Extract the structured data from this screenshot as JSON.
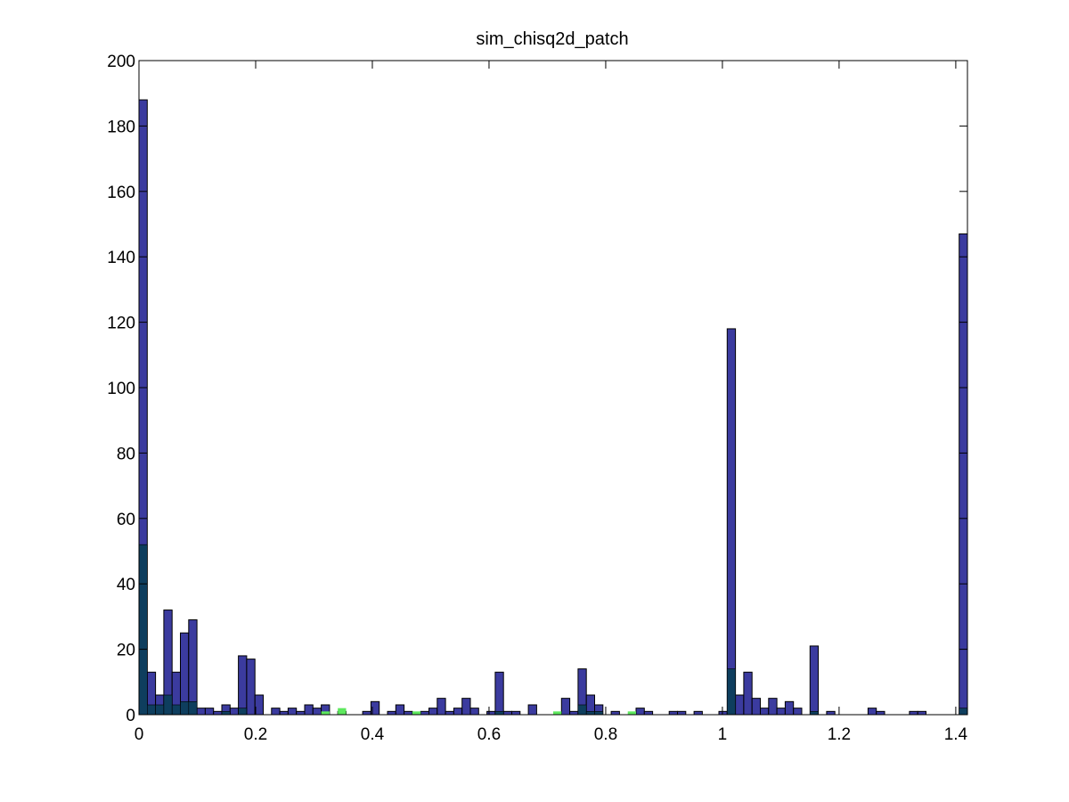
{
  "chart_data": {
    "type": "bar",
    "title": "sim_chisq2d_patch",
    "xlabel": "",
    "ylabel": "",
    "xlim": [
      0,
      1.42
    ],
    "ylim": [
      0,
      200
    ],
    "x_ticks": [
      0,
      0.2,
      0.4,
      0.6,
      0.8,
      1,
      1.2,
      1.4
    ],
    "x_tick_labels": [
      "0",
      "0.2",
      "0.4",
      "0.6",
      "0.8",
      "1",
      "1.2",
      "1.4"
    ],
    "y_ticks": [
      0,
      20,
      40,
      60,
      80,
      100,
      120,
      140,
      160,
      180,
      200
    ],
    "y_tick_labels": [
      "0",
      "20",
      "40",
      "60",
      "80",
      "100",
      "120",
      "140",
      "160",
      "180",
      "200"
    ],
    "bin_width": 0.0142,
    "grid": false,
    "colors": {
      "total": "#3b3b9f",
      "subset_dark": "#0e3e5e",
      "subset_light": "#5ee85e",
      "edge": "#000000"
    },
    "series": [
      {
        "values": [
          [
            0.0,
            188
          ],
          [
            0.0142,
            13
          ],
          [
            0.0284,
            6
          ],
          [
            0.0426,
            32
          ],
          [
            0.0568,
            13
          ],
          [
            0.071,
            25
          ],
          [
            0.0852,
            29
          ],
          [
            0.0994,
            2
          ],
          [
            0.1136,
            2
          ],
          [
            0.1278,
            1
          ],
          [
            0.142,
            3
          ],
          [
            0.1562,
            2
          ],
          [
            0.1704,
            18
          ],
          [
            0.1846,
            17
          ],
          [
            0.1988,
            6
          ],
          [
            0.2272,
            2
          ],
          [
            0.2414,
            1
          ],
          [
            0.2556,
            2
          ],
          [
            0.2698,
            1
          ],
          [
            0.284,
            3
          ],
          [
            0.2982,
            2
          ],
          [
            0.3124,
            3
          ],
          [
            0.3408,
            1
          ],
          [
            0.3834,
            1
          ],
          [
            0.3976,
            4
          ],
          [
            0.426,
            1
          ],
          [
            0.4402,
            3
          ],
          [
            0.4544,
            1
          ],
          [
            0.4828,
            1
          ],
          [
            0.497,
            2
          ],
          [
            0.5112,
            5
          ],
          [
            0.5254,
            1
          ],
          [
            0.5396,
            2
          ],
          [
            0.5538,
            5
          ],
          [
            0.568,
            2
          ],
          [
            0.5964,
            1
          ],
          [
            0.6106,
            13
          ],
          [
            0.6248,
            1
          ],
          [
            0.639,
            1
          ],
          [
            0.6674,
            3
          ],
          [
            0.7242,
            5
          ],
          [
            0.7384,
            1
          ],
          [
            0.7526,
            14
          ],
          [
            0.7668,
            6
          ],
          [
            0.781,
            3
          ],
          [
            0.8094,
            1
          ],
          [
            0.852,
            2
          ],
          [
            0.8662,
            1
          ],
          [
            0.9088,
            1
          ],
          [
            0.923,
            1
          ],
          [
            0.9514,
            1
          ],
          [
            0.994,
            1
          ],
          [
            1.0082,
            118
          ],
          [
            1.0224,
            6
          ],
          [
            1.0366,
            13
          ],
          [
            1.0508,
            5
          ],
          [
            1.065,
            2
          ],
          [
            1.0792,
            5
          ],
          [
            1.0934,
            2
          ],
          [
            1.1076,
            4
          ],
          [
            1.1218,
            2
          ],
          [
            1.1502,
            21
          ],
          [
            1.1786,
            1
          ],
          [
            1.2496,
            2
          ],
          [
            1.2638,
            1
          ],
          [
            1.3206,
            1
          ],
          [
            1.3348,
            1
          ],
          [
            1.4058,
            147
          ]
        ]
      },
      {
        "values": [
          [
            0.0,
            52
          ],
          [
            0.0142,
            3
          ],
          [
            0.0284,
            3
          ],
          [
            0.0426,
            6
          ],
          [
            0.0568,
            3
          ],
          [
            0.071,
            4
          ],
          [
            0.0852,
            4
          ],
          [
            0.1704,
            2
          ],
          [
            0.142,
            1
          ],
          [
            0.6106,
            1
          ],
          [
            0.7526,
            3
          ],
          [
            0.7668,
            1
          ],
          [
            0.781,
            1
          ],
          [
            1.0082,
            14
          ],
          [
            1.1502,
            1
          ],
          [
            1.4058,
            2
          ]
        ]
      },
      {
        "values": [
          [
            0.3408,
            2
          ],
          [
            0.3124,
            1
          ],
          [
            0.4686,
            1
          ],
          [
            0.71,
            1
          ],
          [
            0.8378,
            1
          ]
        ]
      }
    ]
  }
}
